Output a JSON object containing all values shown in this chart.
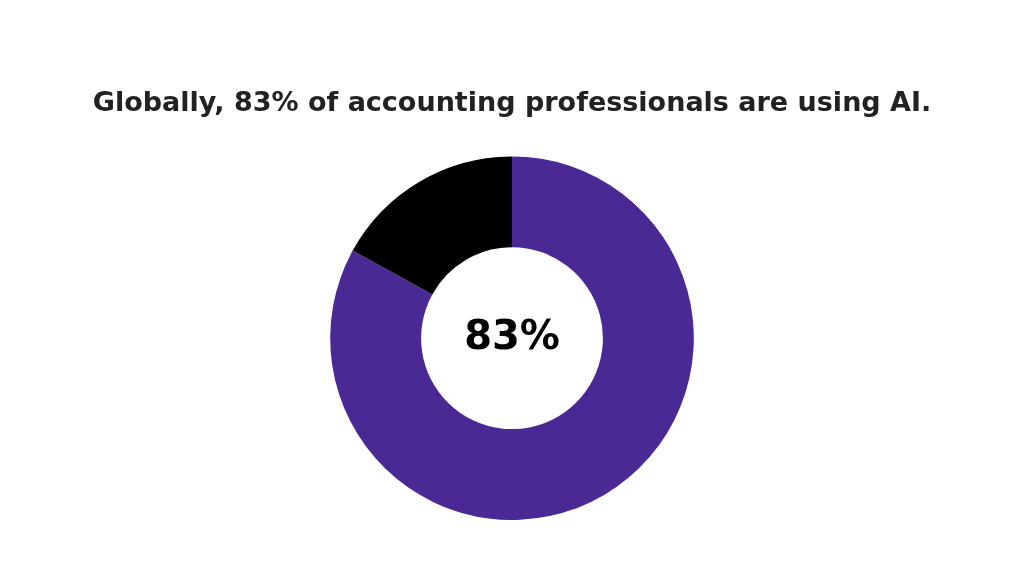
{
  "chart_data": {
    "type": "donut",
    "title": "Globally, 83% of accounting professionals are using AI.",
    "categories": [
      null,
      null
    ],
    "values": [
      83,
      17
    ],
    "colors": [
      "#4b2994",
      "#000000"
    ],
    "value_labels": [
      "83%",
      null
    ]
  }
}
